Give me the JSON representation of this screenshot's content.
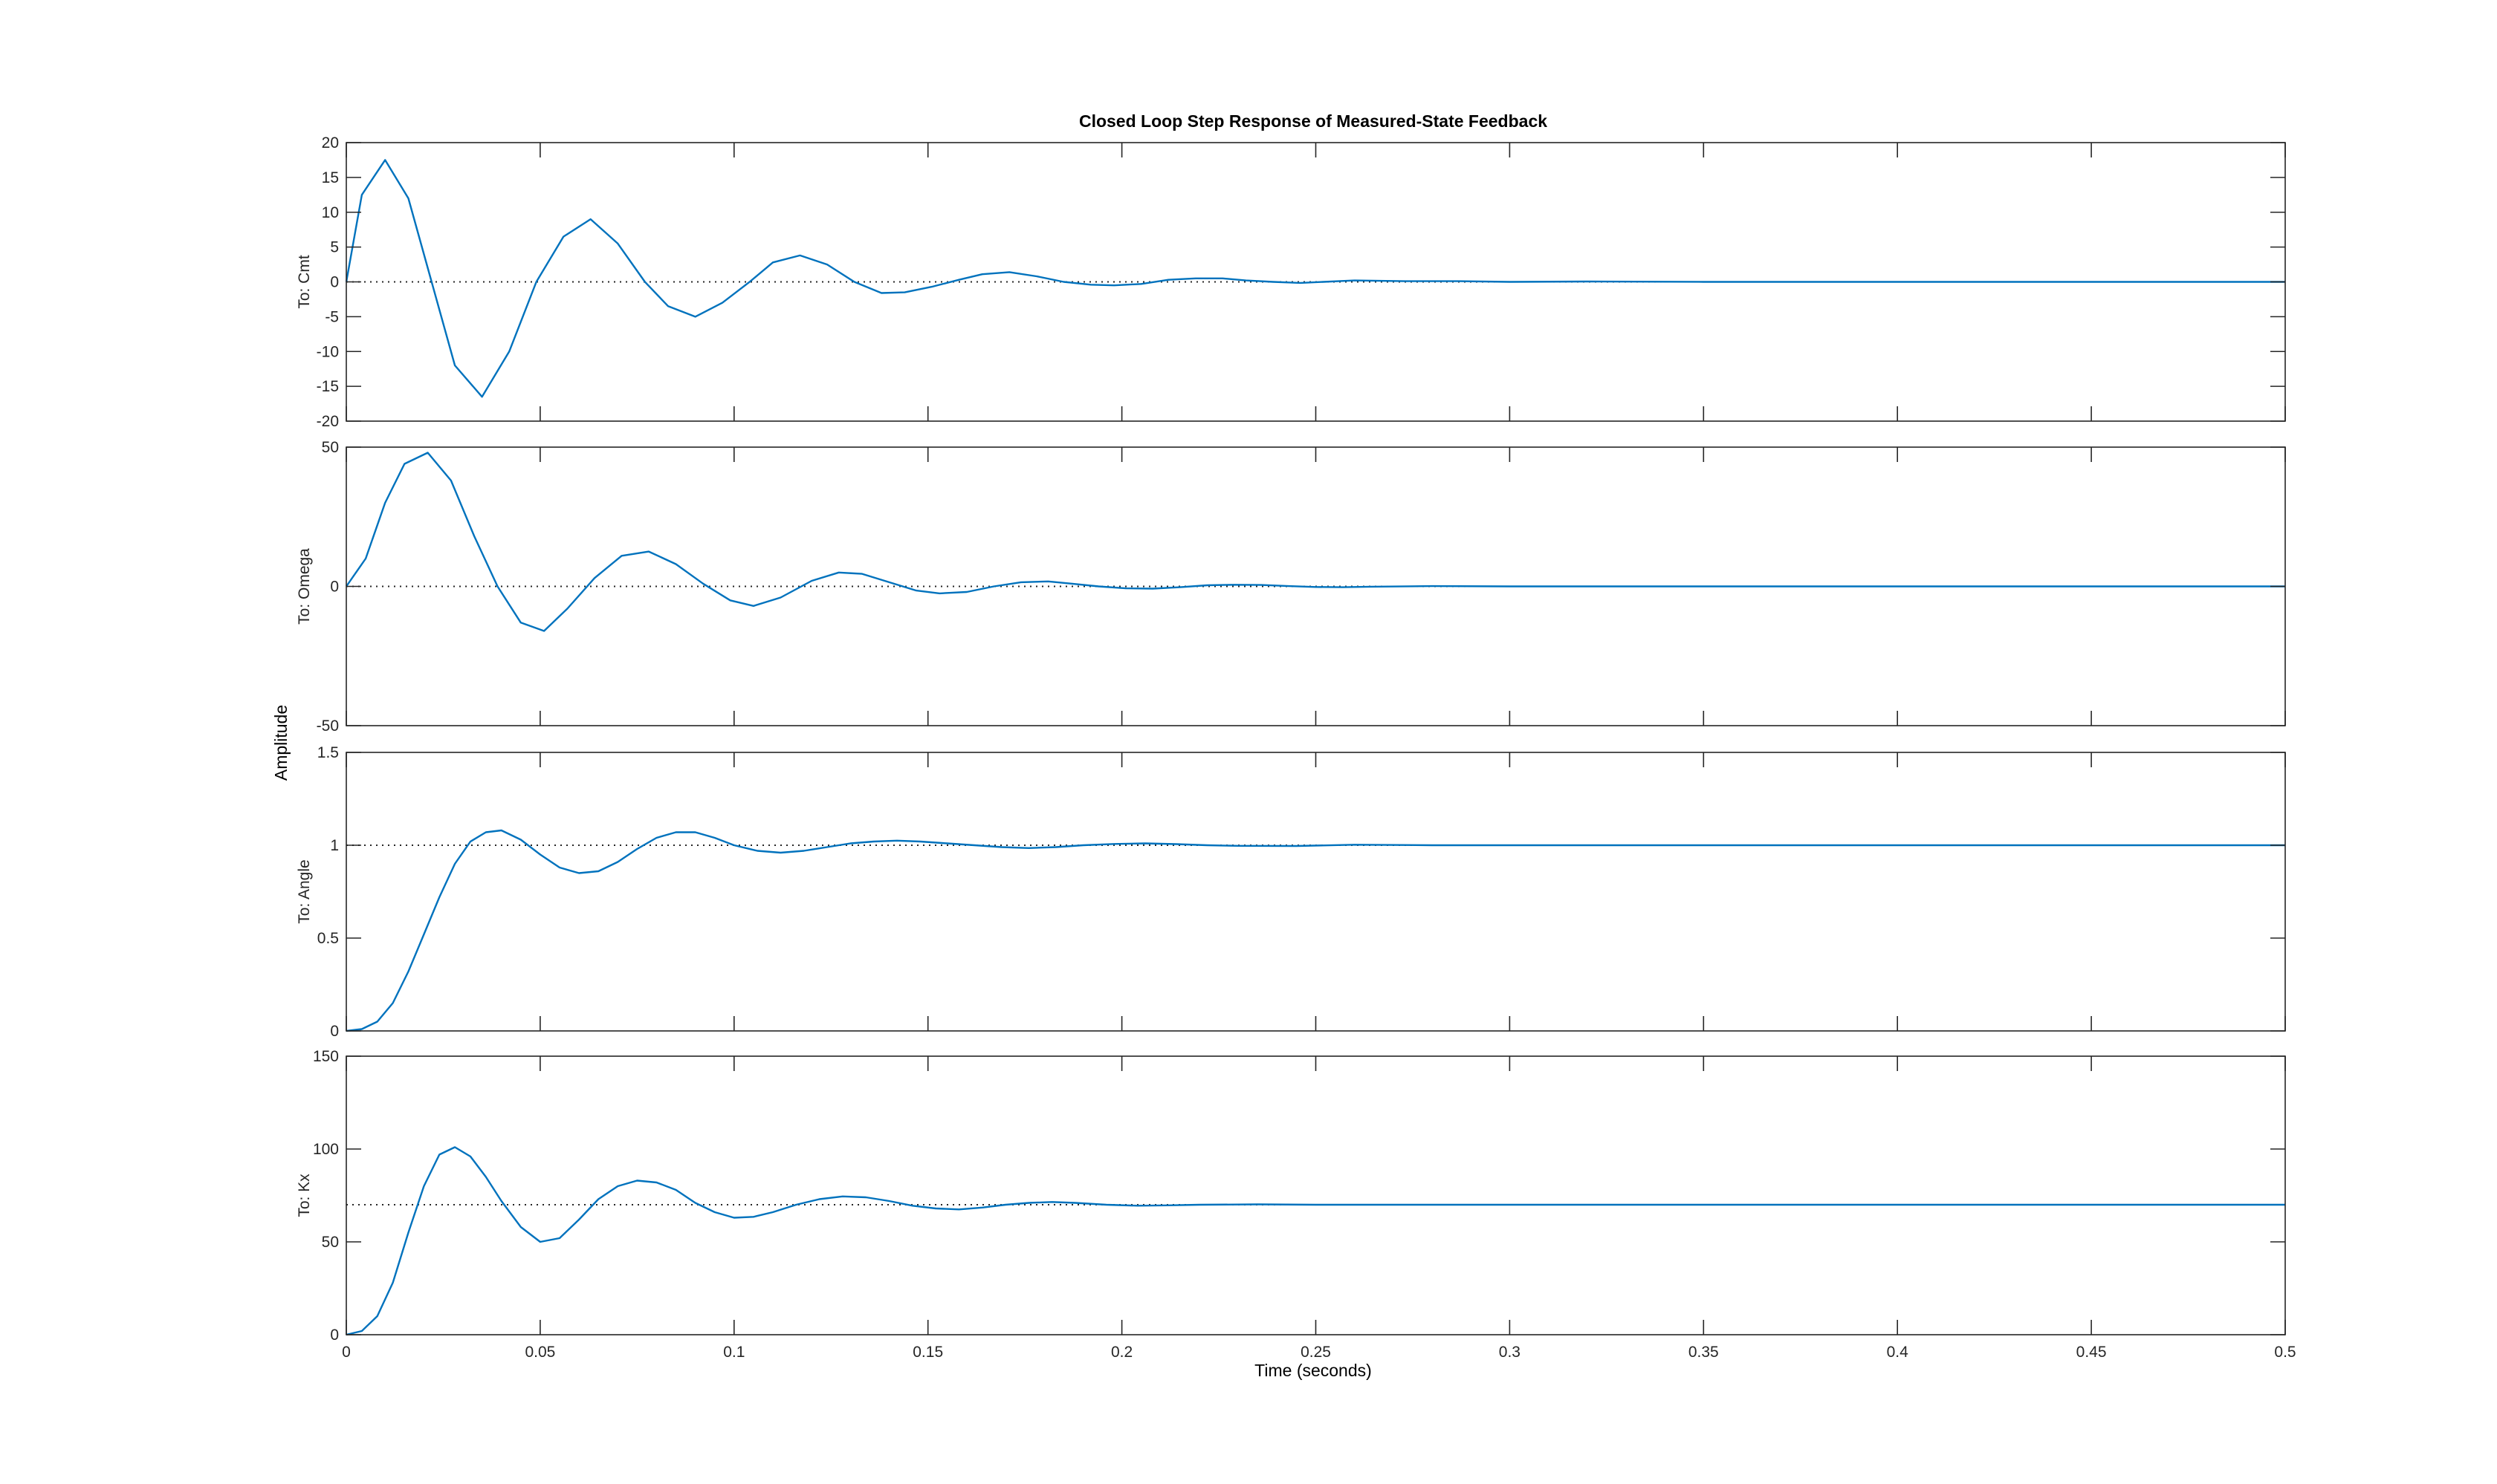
{
  "colors": {
    "background": "#ffffff",
    "axes_box": "#262626",
    "series_line": "#0072bd",
    "reference_line": "#262626"
  },
  "chart_data": {
    "type": "line",
    "title": "Closed Loop Step Response of Measured-State Feedback",
    "xlabel": "Time (seconds)",
    "ylabel": "Amplitude",
    "grid": false,
    "legend": "none",
    "xlim": [
      0,
      0.5
    ],
    "xticks": [
      0,
      0.05,
      0.1,
      0.15,
      0.2,
      0.25,
      0.3,
      0.35,
      0.4,
      0.45,
      0.5
    ],
    "xtick_labels": [
      "0",
      "0.05",
      "0.1",
      "0.15",
      "0.2",
      "0.25",
      "0.3",
      "0.35",
      "0.4",
      "0.45",
      "0.5"
    ],
    "subplots": [
      {
        "row_label": "To: Cmt",
        "ylim": [
          -20,
          20
        ],
        "yticks": [
          -20,
          -15,
          -10,
          -5,
          0,
          5,
          10,
          15,
          20
        ],
        "ytick_labels": [
          "-20",
          "-15",
          "-10",
          "-5",
          "0",
          "5",
          "10",
          "15",
          "20"
        ],
        "steady_state": 0,
        "series": [
          {
            "x": [
              0,
              0.004,
              0.01,
              0.016,
              0.022,
              0.028,
              0.035,
              0.042,
              0.049,
              0.056,
              0.063,
              0.07,
              0.077,
              0.083,
              0.09,
              0.097,
              0.104,
              0.11,
              0.117,
              0.124,
              0.131,
              0.138,
              0.144,
              0.151,
              0.158,
              0.164,
              0.171,
              0.178,
              0.185,
              0.192,
              0.198,
              0.205,
              0.212,
              0.219,
              0.226,
              0.232,
              0.239,
              0.246,
              0.26,
              0.273,
              0.287,
              0.3,
              0.32,
              0.35,
              0.4,
              0.45,
              0.5
            ],
            "y": [
              0,
              12.5,
              17.5,
              12,
              0,
              -12,
              -16.5,
              -10,
              0,
              6.5,
              9,
              5.5,
              0,
              -3.5,
              -5,
              -3,
              0,
              2.8,
              3.8,
              2.5,
              0,
              -1.6,
              -1.5,
              -0.7,
              0.3,
              1.1,
              1.4,
              0.8,
              0,
              -0.4,
              -0.5,
              -0.3,
              0.3,
              0.5,
              0.5,
              0.2,
              0,
              -0.15,
              0.2,
              0.1,
              0.1,
              0,
              0.05,
              0,
              0,
              0,
              0
            ]
          }
        ]
      },
      {
        "row_label": "To: Omega",
        "ylim": [
          -50,
          50
        ],
        "yticks": [
          -50,
          0,
          50
        ],
        "ytick_labels": [
          "-50",
          "0",
          "50"
        ],
        "steady_state": 0,
        "series": [
          {
            "x": [
              0,
              0.005,
              0.01,
              0.015,
              0.021,
              0.027,
              0.033,
              0.039,
              0.045,
              0.051,
              0.057,
              0.064,
              0.071,
              0.078,
              0.085,
              0.092,
              0.099,
              0.105,
              0.112,
              0.12,
              0.127,
              0.133,
              0.14,
              0.147,
              0.153,
              0.16,
              0.167,
              0.174,
              0.181,
              0.187,
              0.194,
              0.201,
              0.208,
              0.215,
              0.222,
              0.229,
              0.236,
              0.243,
              0.25,
              0.257,
              0.264,
              0.28,
              0.3,
              0.33,
              0.4,
              0.5
            ],
            "y": [
              0,
              10,
              30,
              44,
              48,
              38,
              18,
              0,
              -13,
              -16,
              -8,
              3,
              11,
              12.5,
              8,
              1,
              -5,
              -7,
              -4,
              2,
              5,
              4.5,
              1.5,
              -1.5,
              -2.5,
              -2,
              0,
              1.5,
              1.8,
              1,
              0,
              -0.7,
              -0.8,
              -0.3,
              0.4,
              0.6,
              0.5,
              0.1,
              -0.2,
              -0.3,
              -0.1,
              0.1,
              0,
              0,
              0,
              0
            ]
          }
        ]
      },
      {
        "row_label": "To: Angle",
        "ylim": [
          0,
          1.5
        ],
        "yticks": [
          0,
          0.5,
          1,
          1.5
        ],
        "ytick_labels": [
          "0",
          "0.5",
          "1",
          "1.5"
        ],
        "steady_state": 1,
        "series": [
          {
            "x": [
              0,
              0.004,
              0.008,
              0.012,
              0.016,
              0.02,
              0.024,
              0.028,
              0.032,
              0.036,
              0.04,
              0.045,
              0.05,
              0.055,
              0.06,
              0.065,
              0.07,
              0.075,
              0.08,
              0.085,
              0.09,
              0.095,
              0.1,
              0.106,
              0.112,
              0.118,
              0.124,
              0.13,
              0.136,
              0.142,
              0.148,
              0.155,
              0.162,
              0.169,
              0.176,
              0.183,
              0.19,
              0.198,
              0.206,
              0.214,
              0.222,
              0.23,
              0.245,
              0.26,
              0.28,
              0.3,
              0.35,
              0.4,
              0.5
            ],
            "y": [
              0,
              0.01,
              0.05,
              0.15,
              0.32,
              0.52,
              0.72,
              0.9,
              1.02,
              1.07,
              1.08,
              1.03,
              0.95,
              0.88,
              0.85,
              0.86,
              0.91,
              0.98,
              1.04,
              1.07,
              1.07,
              1.04,
              1.0,
              0.97,
              0.96,
              0.97,
              0.99,
              1.01,
              1.02,
              1.025,
              1.02,
              1.01,
              1.0,
              0.99,
              0.985,
              0.99,
              1.0,
              1.007,
              1.01,
              1.006,
              1.0,
              0.997,
              0.996,
              1.003,
              1.0,
              1.0,
              1.0,
              1.0,
              1.0
            ]
          }
        ]
      },
      {
        "row_label": "To: Kx",
        "ylim": [
          0,
          150
        ],
        "yticks": [
          0,
          50,
          100,
          150
        ],
        "ytick_labels": [
          "0",
          "50",
          "100",
          "150"
        ],
        "steady_state": 70,
        "series": [
          {
            "x": [
              0,
              0.004,
              0.008,
              0.012,
              0.016,
              0.02,
              0.024,
              0.028,
              0.032,
              0.036,
              0.04,
              0.045,
              0.05,
              0.055,
              0.06,
              0.065,
              0.07,
              0.075,
              0.08,
              0.085,
              0.09,
              0.095,
              0.1,
              0.105,
              0.11,
              0.116,
              0.122,
              0.128,
              0.134,
              0.14,
              0.146,
              0.152,
              0.158,
              0.164,
              0.17,
              0.176,
              0.182,
              0.188,
              0.196,
              0.204,
              0.212,
              0.22,
              0.235,
              0.25,
              0.27,
              0.3,
              0.35,
              0.4,
              0.5
            ],
            "y": [
              0,
              2,
              10,
              28,
              55,
              80,
              97,
              101,
              96,
              85,
              72,
              58,
              50,
              52,
              62,
              73,
              80,
              83,
              82,
              78,
              71,
              66,
              63,
              63.5,
              66,
              70,
              73,
              74.5,
              74,
              72,
              69.5,
              68,
              67.5,
              68.5,
              70,
              71,
              71.5,
              71,
              70,
              69.5,
              69.7,
              70,
              70.2,
              70,
              70,
              70,
              70,
              70,
              70
            ]
          }
        ]
      }
    ]
  }
}
